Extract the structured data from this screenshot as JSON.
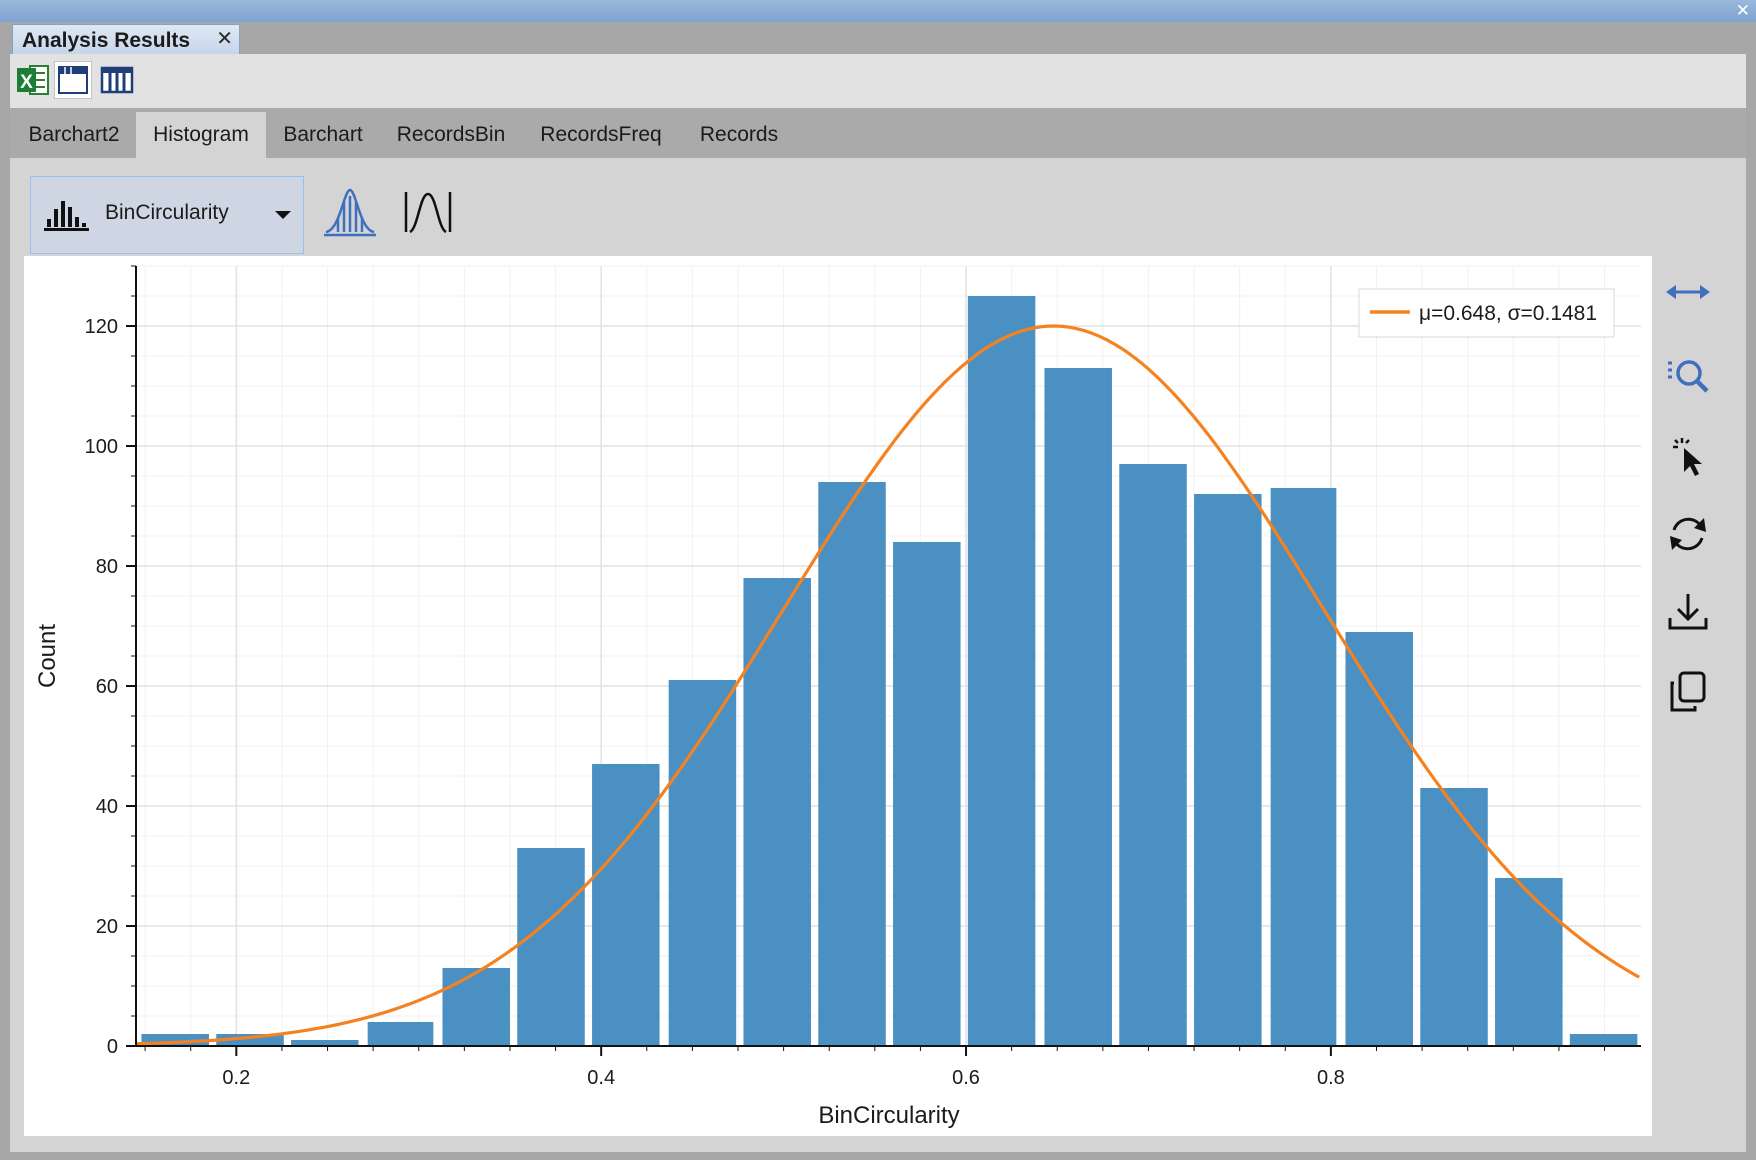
{
  "window": {
    "tab_title": "Analysis Results",
    "tab_close": "✕",
    "close_glyph": "✕"
  },
  "toolbar": {
    "excel_icon_letter": "X",
    "icons": [
      "excel-export-icon",
      "window-icon",
      "columns-icon"
    ]
  },
  "tabs": [
    {
      "label": "Barchart2",
      "active": false
    },
    {
      "label": "Histogram",
      "active": true
    },
    {
      "label": "Barchart",
      "active": false
    },
    {
      "label": "RecordsBin",
      "active": false
    },
    {
      "label": "RecordsFreq",
      "active": false
    },
    {
      "label": "Records",
      "active": false
    }
  ],
  "controls": {
    "variable_select": "BinCircularity",
    "select_icon": "histogram-icon",
    "fit_icon": "normal-fit-icon",
    "curve_icon": "curve-icon"
  },
  "side_tools": [
    "horizontal-arrows-icon",
    "zoom-list-icon",
    "select-pointer-icon",
    "refresh-icon",
    "download-icon",
    "copy-icon"
  ],
  "colors": {
    "bar": "#4a90c2",
    "fit": "#f58220",
    "accent": "#3f6fbf"
  },
  "chart_data": {
    "type": "bar",
    "xlabel": "BinCircularity",
    "ylabel": "Count",
    "xlim": [
      0.145,
      0.97
    ],
    "ylim": [
      0,
      130
    ],
    "xticks": [
      0.2,
      0.4,
      0.6,
      0.8
    ],
    "yticks": [
      0,
      20,
      40,
      60,
      80,
      100,
      120
    ],
    "bins": [
      {
        "start": 0.148,
        "end": 0.185,
        "count": 2
      },
      {
        "start": 0.189,
        "end": 0.226,
        "count": 2
      },
      {
        "start": 0.23,
        "end": 0.267,
        "count": 1
      },
      {
        "start": 0.272,
        "end": 0.308,
        "count": 4
      },
      {
        "start": 0.313,
        "end": 0.35,
        "count": 13
      },
      {
        "start": 0.354,
        "end": 0.391,
        "count": 33
      },
      {
        "start": 0.395,
        "end": 0.432,
        "count": 47
      },
      {
        "start": 0.437,
        "end": 0.474,
        "count": 61
      },
      {
        "start": 0.478,
        "end": 0.515,
        "count": 78
      },
      {
        "start": 0.519,
        "end": 0.556,
        "count": 94
      },
      {
        "start": 0.56,
        "end": 0.597,
        "count": 84
      },
      {
        "start": 0.601,
        "end": 0.638,
        "count": 125
      },
      {
        "start": 0.643,
        "end": 0.68,
        "count": 113
      },
      {
        "start": 0.684,
        "end": 0.721,
        "count": 97
      },
      {
        "start": 0.725,
        "end": 0.762,
        "count": 92
      },
      {
        "start": 0.767,
        "end": 0.803,
        "count": 93
      },
      {
        "start": 0.808,
        "end": 0.845,
        "count": 69
      },
      {
        "start": 0.849,
        "end": 0.886,
        "count": 43
      },
      {
        "start": 0.89,
        "end": 0.927,
        "count": 28
      },
      {
        "start": 0.931,
        "end": 0.968,
        "count": 2
      }
    ],
    "fit": {
      "type": "normal",
      "mu": 0.648,
      "sigma": 0.1481,
      "peak": 120
    },
    "legend": {
      "label": "μ=0.648, σ=0.1481",
      "position": "top-right"
    },
    "grid": true
  }
}
